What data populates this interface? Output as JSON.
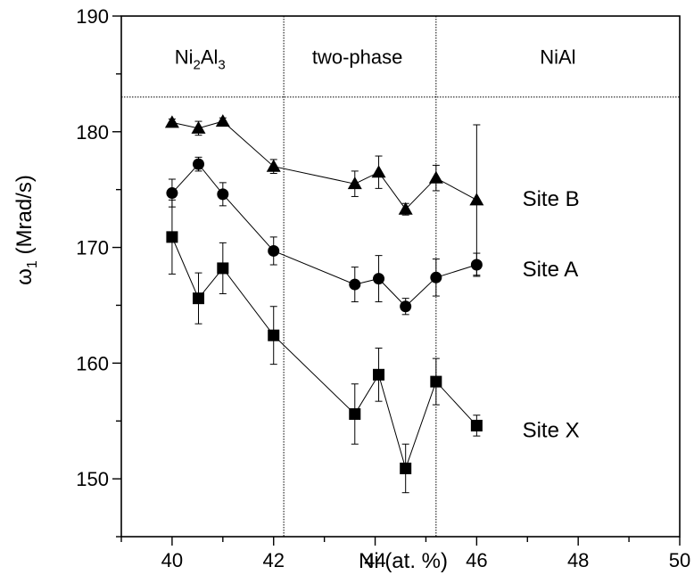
{
  "chart_data": {
    "type": "scatter",
    "title": "",
    "xlabel": "Ni (at. %)",
    "ylabel": "ω₁ (Mrad/s)",
    "ylabel_main": "ω",
    "ylabel_sub": "1",
    "ylabel_rest": " (Mrad/s)",
    "xlim": [
      39,
      50
    ],
    "ylim": [
      145,
      190
    ],
    "xticks": [
      40,
      42,
      44,
      46,
      48,
      50
    ],
    "yticks": [
      150,
      160,
      170,
      180,
      190
    ],
    "grid": false,
    "legend": "none",
    "phase_boundaries_x": [
      42.2,
      45.2
    ],
    "phase_line_y": 183,
    "regions": [
      {
        "id": "ni2al3",
        "label_main": "Ni",
        "label_sub1": "2",
        "label_mid": "Al",
        "label_sub2": "3",
        "x_center": 40.55
      },
      {
        "id": "two-phase",
        "label": "two-phase",
        "x_center": 43.65
      },
      {
        "id": "nial",
        "label": "NiAl",
        "x_center": 47.6
      }
    ],
    "series": [
      {
        "name": "Site B",
        "marker": "triangle",
        "label_x": 46.9,
        "label_y": 174.2,
        "x": [
          40.0,
          40.52,
          41.0,
          42.0,
          43.6,
          44.07,
          44.6,
          45.2,
          46.0
        ],
        "y": [
          180.8,
          180.3,
          180.9,
          177.0,
          175.5,
          176.5,
          173.3,
          176.0,
          174.1
        ],
        "err": [
          0.3,
          0.6,
          0.3,
          0.6,
          1.1,
          1.4,
          0.5,
          1.1,
          6.5
        ]
      },
      {
        "name": "Site A",
        "marker": "circle",
        "label_x": 46.9,
        "label_y": 168.1,
        "x": [
          40.0,
          40.52,
          41.0,
          42.0,
          43.6,
          44.07,
          44.6,
          45.2,
          46.0
        ],
        "y": [
          174.7,
          177.2,
          174.6,
          169.7,
          166.8,
          167.3,
          164.9,
          167.4,
          168.5
        ],
        "err": [
          1.2,
          0.6,
          1.0,
          1.2,
          1.5,
          2.0,
          0.7,
          1.6,
          1.0
        ]
      },
      {
        "name": "Site X",
        "marker": "square",
        "label_x": 46.9,
        "label_y": 154.2,
        "x": [
          40.0,
          40.52,
          41.0,
          42.0,
          43.6,
          44.07,
          44.6,
          45.2,
          46.0
        ],
        "y": [
          170.9,
          165.6,
          168.2,
          162.4,
          155.6,
          159.0,
          150.9,
          158.4,
          154.6
        ],
        "err": [
          3.2,
          2.2,
          2.2,
          2.5,
          2.6,
          2.3,
          2.1,
          2.0,
          0.9
        ]
      }
    ]
  }
}
